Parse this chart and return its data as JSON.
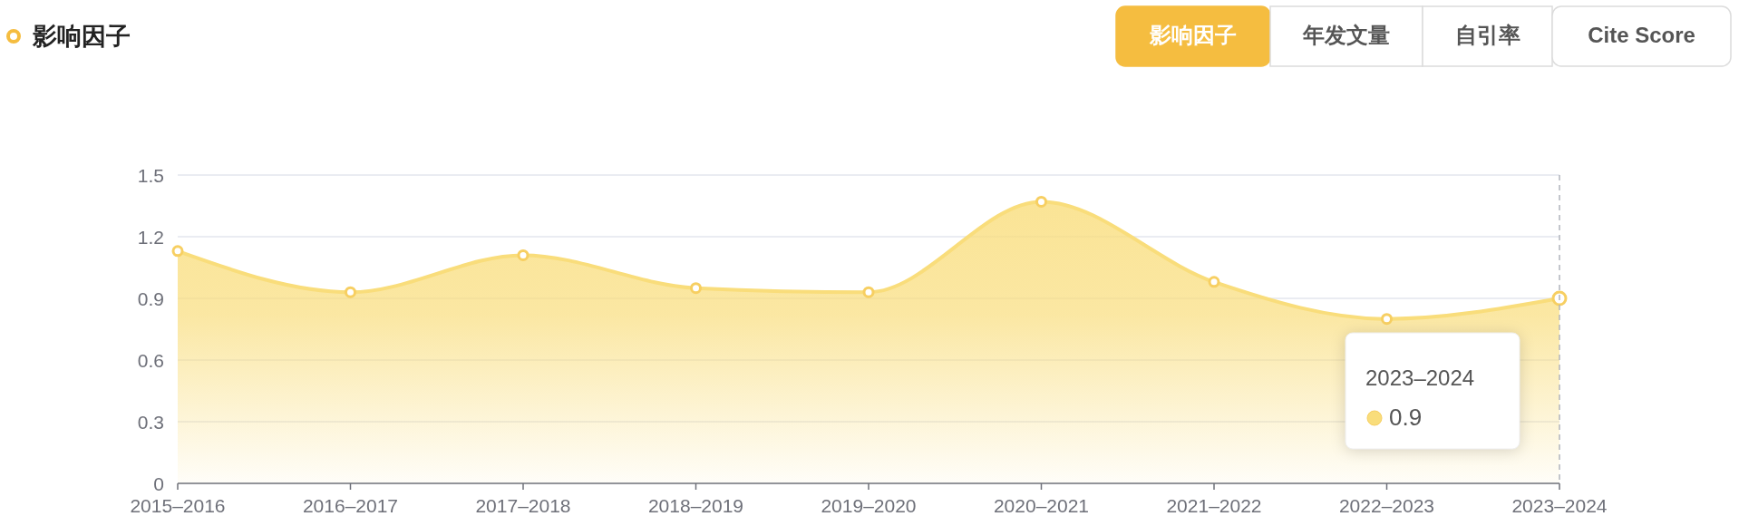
{
  "chart_data": {
    "type": "area",
    "title": "影响因子",
    "categories": [
      "2015–2016",
      "2016–2017",
      "2017–2018",
      "2018–2019",
      "2019–2020",
      "2020–2021",
      "2021–2022",
      "2022–2023",
      "2023–2024"
    ],
    "series": [
      {
        "color": "#f9dd7b",
        "values": [
          1.13,
          0.93,
          1.11,
          0.95,
          0.93,
          1.37,
          0.98,
          0.8,
          0.9
        ]
      }
    ],
    "ylim": [
      0,
      1.5
    ],
    "yticks": [
      0,
      0.3,
      0.6,
      0.9,
      1.2,
      1.5
    ],
    "grid": "y",
    "marker": "circle",
    "ref_lines": [
      {
        "axis": "x",
        "value": "2023–2024",
        "color": "#b0b4bc",
        "line_style": "dashed"
      }
    ],
    "annotations": [
      "影响因子",
      "年发文量",
      "自引率",
      "Cite Score",
      "2023–2024",
      "0.9"
    ]
  }
}
